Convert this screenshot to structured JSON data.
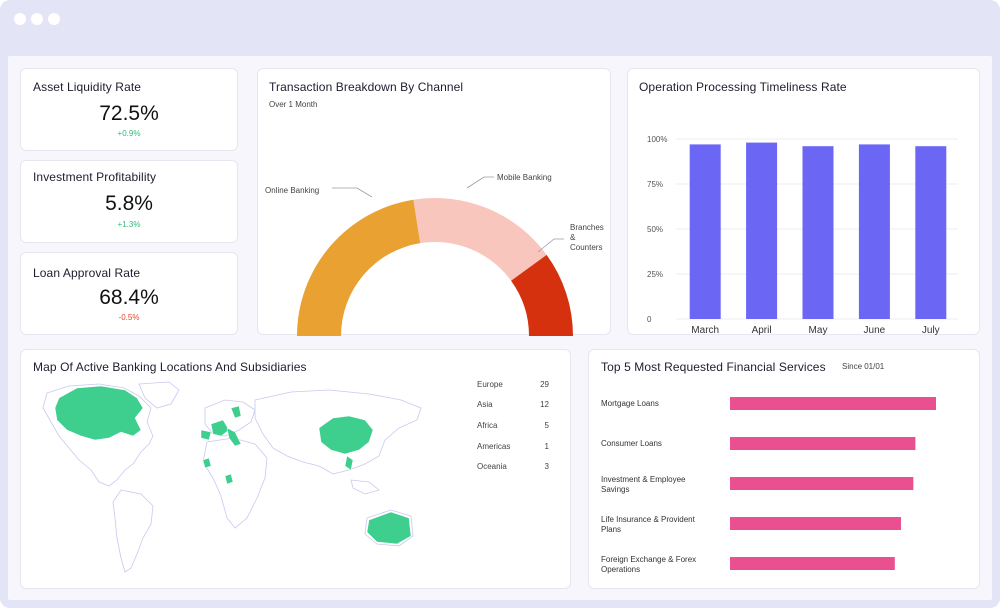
{
  "colors": {
    "frame": "#e4e4f7",
    "positive": "#2ebd79",
    "negative": "#e8492f",
    "bar_blue": "#6c66f5",
    "bar_pink": "#e9508f",
    "map_green": "#3ecf8e",
    "donut": [
      "#e9a232",
      "#f8c6bd",
      "#d5310f"
    ]
  },
  "kpis": [
    {
      "title": "Asset Liquidity Rate",
      "value": "72.5%",
      "delta": "+0.9%",
      "trend": "up"
    },
    {
      "title": "Investment Profitability",
      "value": "5.8%",
      "delta": "+1.3%",
      "trend": "up"
    },
    {
      "title": "Loan Approval Rate",
      "value": "68.4%",
      "delta": "-0.5%",
      "trend": "down"
    }
  ],
  "transaction": {
    "title": "Transaction Breakdown By Channel",
    "subtitle": "Over 1 Month",
    "labels": [
      "Online Banking",
      "Mobile Banking",
      "Branches",
      "&",
      "Counters"
    ]
  },
  "timeliness": {
    "title": "Operation Processing Timeliness Rate"
  },
  "map": {
    "title": "Map Of Active Banking Locations And Subsidiaries",
    "regions": [
      {
        "name": "Europe",
        "count": "29"
      },
      {
        "name": "Asia",
        "count": "12"
      },
      {
        "name": "Africa",
        "count": "5"
      },
      {
        "name": "Americas",
        "count": "1"
      },
      {
        "name": "Oceania",
        "count": "3"
      }
    ]
  },
  "services": {
    "title": "Top 5 Most Requested Financial Services",
    "since": "Since 01/01",
    "items": [
      {
        "line1": "Mortgage Loans",
        "line2": ""
      },
      {
        "line1": "Consumer Loans",
        "line2": ""
      },
      {
        "line1": "Investment & Employee",
        "line2": "Savings"
      },
      {
        "line1": "Life Insurance & Provident",
        "line2": "Plans"
      },
      {
        "line1": "Foreign Exchange & Forex",
        "line2": "Operations"
      }
    ]
  },
  "chart_data": [
    {
      "type": "pie",
      "title": "Transaction Breakdown By Channel",
      "subtitle": "Over 1 Month",
      "categories": [
        "Online Banking",
        "Mobile Banking",
        "Branches & Counters"
      ],
      "values": [
        45,
        35,
        20
      ],
      "shape": "half-donut"
    },
    {
      "type": "bar",
      "title": "Operation Processing Timeliness Rate",
      "categories": [
        "March",
        "April",
        "May",
        "June",
        "July"
      ],
      "values": [
        97,
        98,
        96,
        97,
        96
      ],
      "ylim": [
        0,
        100
      ],
      "yticks": [
        "0",
        "25%",
        "50%",
        "75%",
        "100%"
      ],
      "grid": true
    },
    {
      "type": "bar",
      "orientation": "horizontal",
      "title": "Top 5 Most Requested Financial Services",
      "categories": [
        "Mortgage Loans",
        "Consumer Loans",
        "Investment & Employee Savings",
        "Life Insurance & Provident Plans",
        "Foreign Exchange & Forex Operations"
      ],
      "values": [
        100,
        90,
        89,
        83,
        80
      ]
    }
  ]
}
